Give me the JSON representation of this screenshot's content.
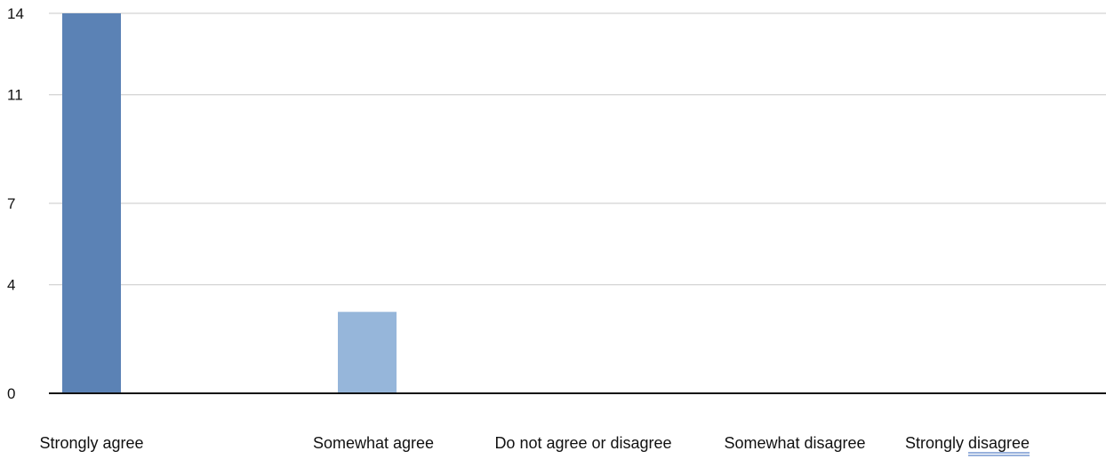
{
  "chart_data": {
    "type": "bar",
    "categories": [
      "Strongly agree",
      "Somewhat agree",
      "Do not agree or disagree",
      "Somewhat disagree",
      "Strongly disagree"
    ],
    "values": [
      14,
      3,
      0,
      0,
      0
    ],
    "bar_colors": [
      "#5b82b5",
      "#96b6da",
      "#96b6da",
      "#96b6da",
      "#96b6da"
    ],
    "yticks": [
      0,
      4,
      7,
      11,
      14
    ],
    "ylim": [
      0,
      14
    ],
    "grid": true,
    "legend": "none",
    "spellcheck_word": "disagree"
  }
}
